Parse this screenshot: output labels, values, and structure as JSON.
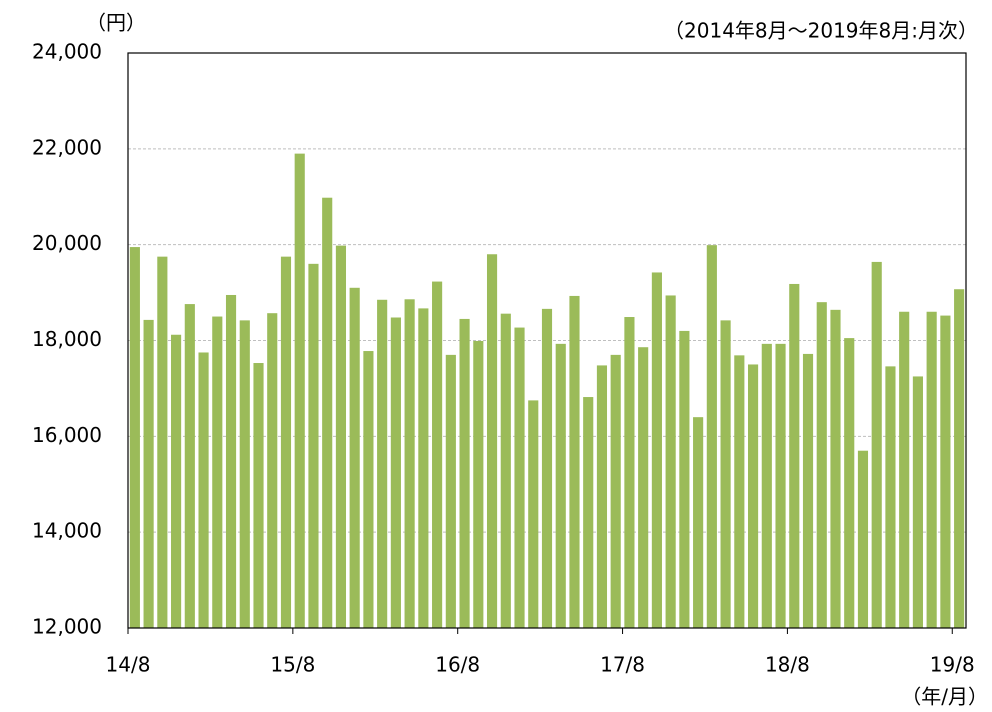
{
  "chart_data": {
    "type": "bar",
    "y_unit": "（円）",
    "subtitle": "（2014年8月～2019年8月:月次）",
    "x_unit": "（年/月）",
    "color": "#9bbb59",
    "grid": true,
    "ylim": [
      12000,
      24000
    ],
    "yticks": [
      {
        "value": 12000,
        "label": "12,000"
      },
      {
        "value": 14000,
        "label": "14,000"
      },
      {
        "value": 16000,
        "label": "16,000"
      },
      {
        "value": 18000,
        "label": "18,000"
      },
      {
        "value": 20000,
        "label": "20,000"
      },
      {
        "value": 22000,
        "label": "22,000"
      },
      {
        "value": 24000,
        "label": "24,000"
      }
    ],
    "categories": [
      "14/8",
      null,
      null,
      null,
      null,
      null,
      null,
      null,
      null,
      null,
      null,
      null,
      "15/8",
      null,
      null,
      null,
      null,
      null,
      null,
      null,
      null,
      null,
      null,
      null,
      "16/8",
      null,
      null,
      null,
      null,
      null,
      null,
      null,
      null,
      null,
      null,
      null,
      "17/8",
      null,
      null,
      null,
      null,
      null,
      null,
      null,
      null,
      null,
      null,
      null,
      "18/8",
      null,
      null,
      null,
      null,
      null,
      null,
      null,
      null,
      null,
      null,
      null,
      "19/8"
    ],
    "values": [
      19950,
      18430,
      19750,
      18120,
      18760,
      17750,
      18500,
      18950,
      18420,
      17530,
      18570,
      19750,
      21900,
      19600,
      20980,
      19980,
      19100,
      17780,
      18850,
      18480,
      18860,
      18670,
      19230,
      17700,
      18450,
      17990,
      19800,
      18560,
      18270,
      16750,
      18660,
      17930,
      18930,
      16820,
      17480,
      17700,
      18490,
      17860,
      19420,
      18940,
      18200,
      16400,
      19990,
      18420,
      17690,
      17500,
      17930,
      17930,
      19180,
      17720,
      18800,
      18640,
      18050,
      15700,
      19640,
      17460,
      18600,
      17250,
      18600,
      18520,
      19070
    ]
  }
}
